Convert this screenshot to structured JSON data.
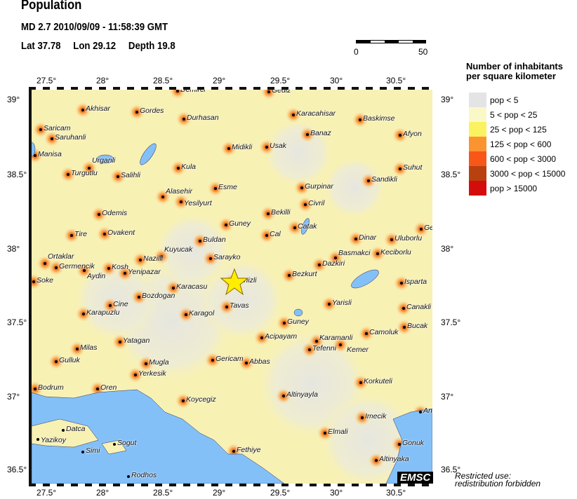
{
  "header": {
    "title": "Population",
    "event": "MD 2.7  2010/09/09 - 11:58:39 GMT",
    "lat": "Lat 37.78",
    "lon": "Lon  29.12",
    "depth": "Depth  19.8"
  },
  "scale": {
    "min": "0",
    "max": "50"
  },
  "axes": {
    "lon_ticks": [
      "27.5°",
      "28°",
      "28.5°",
      "29°",
      "29.5°",
      "30°",
      "30.5°"
    ],
    "lat_ticks": [
      "39°",
      "38.5°",
      "38°",
      "37.5°",
      "37°",
      "36.5°"
    ]
  },
  "legend": {
    "title_line1": "Number of inhabitants",
    "title_line2": "per square kilometer",
    "items": [
      {
        "label": "pop < 5",
        "color": "#e4e4e4"
      },
      {
        "label": "5 < pop < 25",
        "color": "#fbf8c8"
      },
      {
        "label": "25 < pop < 125",
        "color": "#fbf260"
      },
      {
        "label": "125 < pop < 600",
        "color": "#fb9430"
      },
      {
        "label": "600 < pop < 3000",
        "color": "#f85718"
      },
      {
        "label": "3000 < pop < 15000",
        "color": "#b8410f"
      },
      {
        "label": "pop > 15000",
        "color": "#d50c0c"
      }
    ]
  },
  "map": {
    "epicenter_icon": "star-icon",
    "sea_color": "#84c0f8",
    "cities": [
      "Demirci",
      "Gediz",
      "Akhisar",
      "Gordes",
      "Durhasan",
      "Karacahisar",
      "Baskimse",
      "Saricam",
      "Saruhanli",
      "Banaz",
      "Afyon",
      "Midikli",
      "Usak",
      "Manisa",
      "Kula",
      "Turgutlu",
      "Urganli",
      "Salihli",
      "Suhut",
      "Sandikli",
      "Esme",
      "Gurpinar",
      "Alasehir",
      "Yesilyurt",
      "Civril",
      "Bekilli",
      "Odemis",
      "Guney",
      "Catak",
      "Cal",
      "Dinar",
      "Uluborlu",
      "Ge",
      "Tire",
      "Ovakent",
      "Buldan",
      "Keciborlu",
      "Basmakci",
      "Dazkiri",
      "Sarayko",
      "Kuyucak",
      "Nazilli",
      "Ortaklar",
      "Germencik",
      "Aydin",
      "Kosh",
      "Yenipazar",
      "Bezkurt",
      "Isparta",
      "Soke",
      "Denizli",
      "Karacasu",
      "Bozdogan",
      "Cine",
      "Tavas",
      "Karapuzlu",
      "Karagol",
      "Yarisli",
      "Canakli",
      "Guney",
      "Bucak",
      "Camoluk",
      "Acipayam",
      "Karamanli",
      "Kemer",
      "Tefenni",
      "Yatagan",
      "Milas",
      "Mugla",
      "Gulluk",
      "Gericam",
      "Abbas",
      "Yerkesik",
      "Korkuteli",
      "Altinyayla",
      "Bodrum",
      "Oren",
      "Koycegiz",
      "An",
      "Imecik",
      "Elmali",
      "Datca",
      "Yazikoy",
      "Sogut",
      "Simi",
      "Fethiye",
      "Gonuk",
      "Altinyaka",
      "Rodhos"
    ]
  },
  "footer": {
    "logo": "EMSC",
    "restriction_line1": "Restricted use:",
    "restriction_line2": "redistribution forbidden"
  }
}
